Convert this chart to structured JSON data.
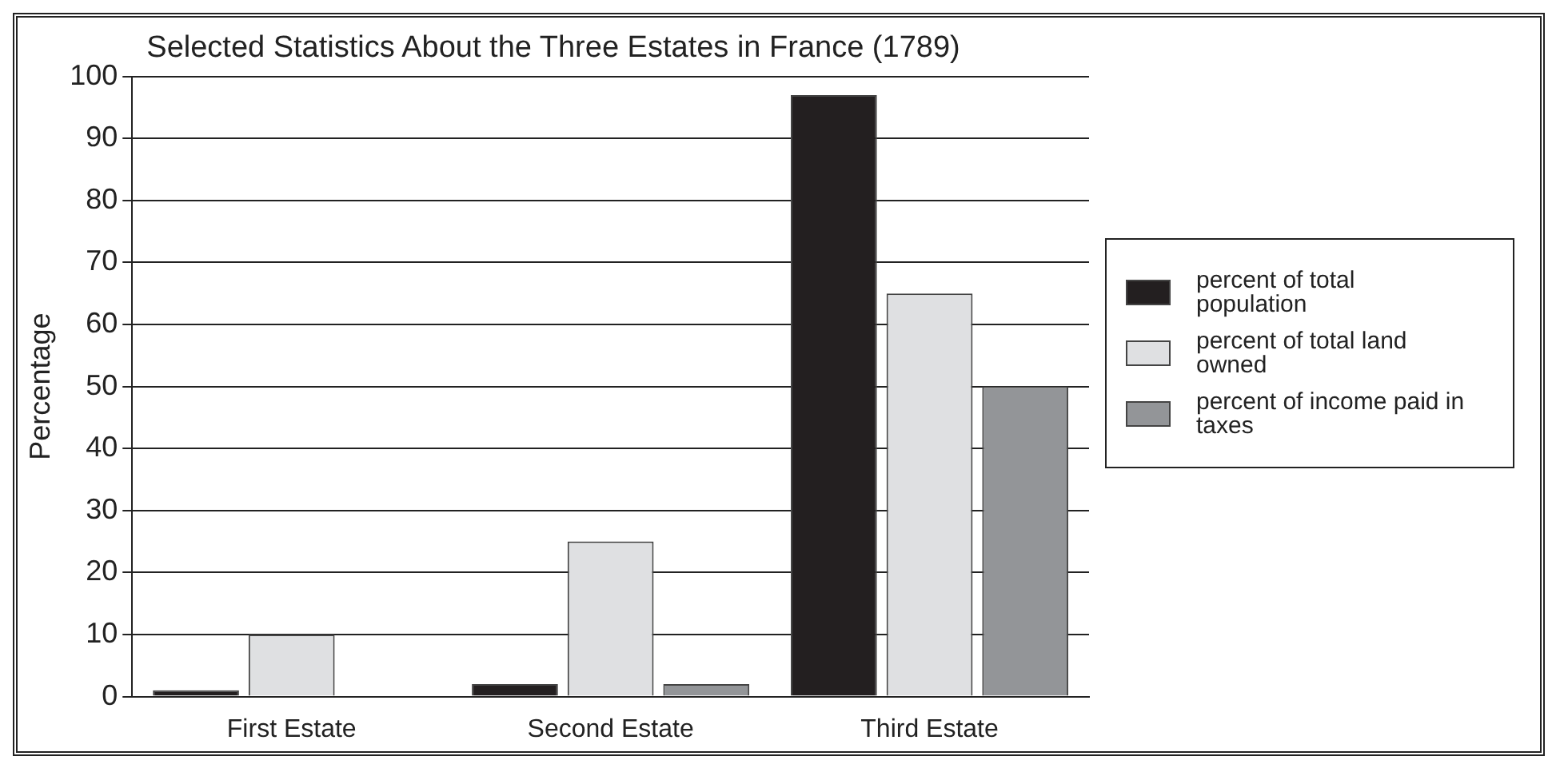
{
  "chart_data": {
    "type": "bar",
    "title": "Selected Statistics About the Three Estates in France (1789)",
    "ylabel": "Percentage",
    "categories": [
      "First Estate",
      "Second Estate",
      "Third Estate"
    ],
    "series": [
      {
        "name": "percent of total population",
        "color": "#231f20",
        "values": [
          1,
          2,
          97
        ]
      },
      {
        "name": "percent of total land owned",
        "color": "#dfe0e2",
        "values": [
          10,
          25,
          65
        ]
      },
      {
        "name": "percent of income paid in taxes",
        "color": "#939598",
        "values": [
          0,
          2,
          50
        ]
      }
    ],
    "ylim": [
      0,
      100
    ],
    "yticks": [
      0,
      10,
      20,
      30,
      40,
      50,
      60,
      70,
      80,
      90,
      100
    ],
    "grid": "y",
    "legend": "right"
  }
}
